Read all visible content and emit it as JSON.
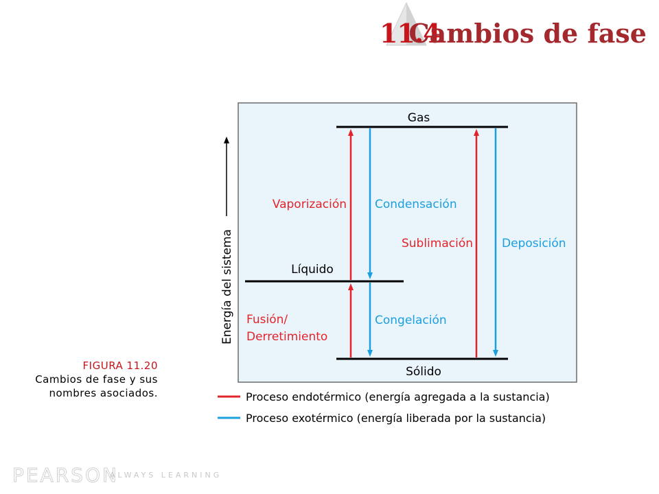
{
  "header": {
    "section_number": "11.4",
    "section_title": "Cambios de fase"
  },
  "figure": {
    "number": "FIGURA 11.20",
    "caption": "Cambios de fase y sus nombres asociados."
  },
  "diagram": {
    "axis_label": "Energía del sistema",
    "levels": {
      "gas": "Gas",
      "liquid": "Líquido",
      "solid": "Sólido"
    },
    "transitions": {
      "vaporization": "Vaporización",
      "condensation": "Condensación",
      "sublimation": "Sublimación",
      "deposition": "Deposición",
      "fusion": "Fusión/",
      "fusion_line2": "Derretimiento",
      "freezing": "Congelación"
    },
    "legend": {
      "endothermic": "Proceso endotérmico (energía agregada a la sustancia)",
      "exothermic": "Proceso exotérmico (energía liberada por la sustancia)"
    },
    "colors": {
      "endothermic": "#e3242b",
      "exothermic": "#1a9fe0",
      "panel_background": "#eaf4fb"
    }
  },
  "footer": {
    "brand": "PEARSON",
    "tagline": "ALWAYS LEARNING"
  }
}
